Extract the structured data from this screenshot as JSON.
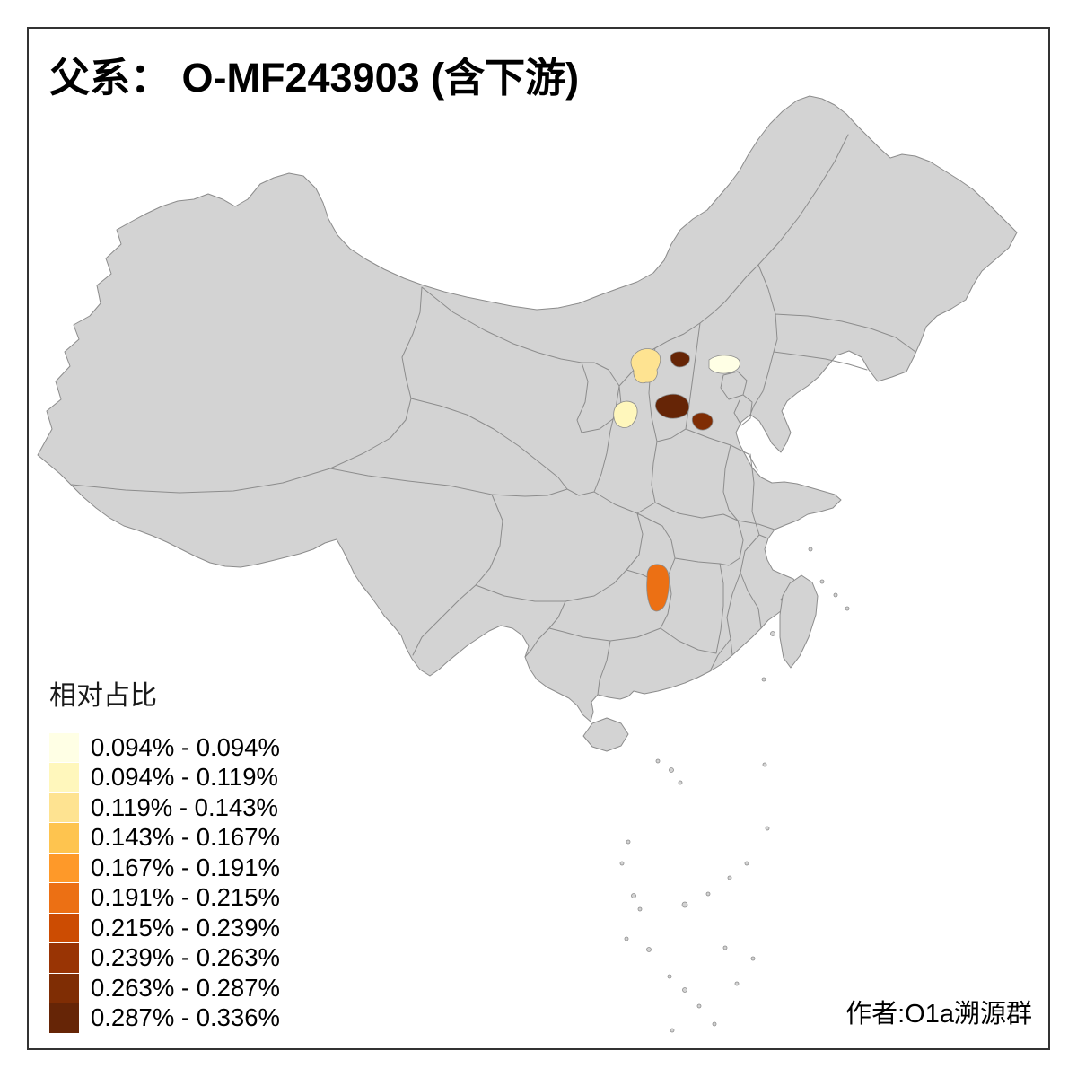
{
  "title": "父系： O-MF243903 (含下游)",
  "credit": "作者:O1a溯源群",
  "legend": {
    "title": "相对占比",
    "classes": [
      {
        "label": "0.094% - 0.094%",
        "color": "#FFFFE5"
      },
      {
        "label": "0.094% - 0.119%",
        "color": "#FFF7BC"
      },
      {
        "label": "0.119% - 0.143%",
        "color": "#FEE391"
      },
      {
        "label": "0.143% - 0.167%",
        "color": "#FEC44F"
      },
      {
        "label": "0.167% - 0.191%",
        "color": "#FE9929"
      },
      {
        "label": "0.191% - 0.215%",
        "color": "#EC7014"
      },
      {
        "label": "0.215% - 0.239%",
        "color": "#CC4C02"
      },
      {
        "label": "0.239% - 0.263%",
        "color": "#993404"
      },
      {
        "label": "0.263% - 0.287%",
        "color": "#7F2D04"
      },
      {
        "label": "0.287% - 0.336%",
        "color": "#662506"
      }
    ]
  },
  "map": {
    "base_fill": "#d3d3d3",
    "border_color": "#8c8c8c",
    "highlighted_regions": [
      {
        "id": "north-region-1",
        "class_index": 2
      },
      {
        "id": "north-region-2",
        "class_index": 9
      },
      {
        "id": "north-region-3",
        "class_index": 0
      },
      {
        "id": "north-region-4",
        "class_index": 1
      },
      {
        "id": "north-region-5",
        "class_index": 9
      },
      {
        "id": "north-region-6",
        "class_index": 8
      },
      {
        "id": "south-region-1",
        "class_index": 5
      }
    ]
  }
}
